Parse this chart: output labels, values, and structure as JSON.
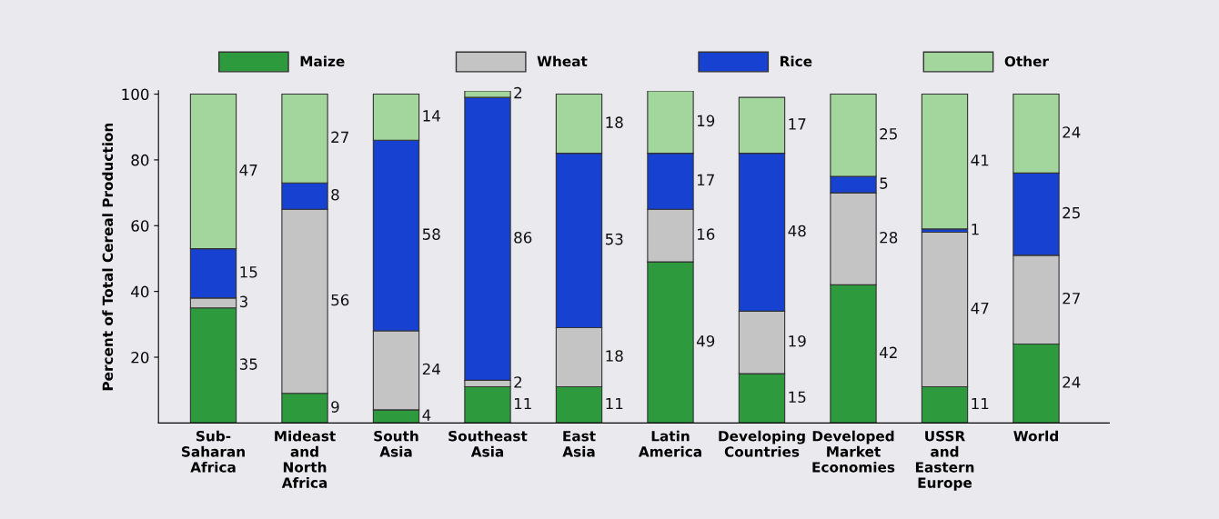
{
  "chart_data": {
    "type": "bar",
    "stacked": true,
    "ylabel": "Percent of Total Cereal Production",
    "categories": [
      "Sub-\nSaharan\nAfrica",
      "Mideast\nand\nNorth\nAfrica",
      "South\nAsia",
      "Southeast\nAsia",
      "East\nAsia",
      "Latin\nAmerica",
      "Developing\nCountries",
      "Developed\nMarket\nEconomies",
      "USSR\nand\nEastern\nEurope",
      "World"
    ],
    "series": [
      {
        "name": "Maize",
        "color": "#2e9a3e",
        "values": [
          35,
          9,
          4,
          11,
          11,
          49,
          15,
          42,
          11,
          24
        ]
      },
      {
        "name": "Wheat",
        "color": "#c4c4c4",
        "values": [
          3,
          56,
          24,
          2,
          18,
          16,
          19,
          28,
          47,
          27
        ]
      },
      {
        "name": "Rice",
        "color": "#1741d0",
        "values": [
          15,
          8,
          58,
          86,
          53,
          17,
          48,
          5,
          1,
          25
        ]
      },
      {
        "name": "Other",
        "color": "#a2d69c",
        "values": [
          47,
          27,
          14,
          2,
          18,
          19,
          17,
          25,
          41,
          24
        ]
      }
    ],
    "ylim": [
      0,
      101
    ],
    "yticks": [
      20,
      40,
      60,
      80,
      100
    ],
    "data_labels": true,
    "grid": false,
    "legend": "top"
  }
}
